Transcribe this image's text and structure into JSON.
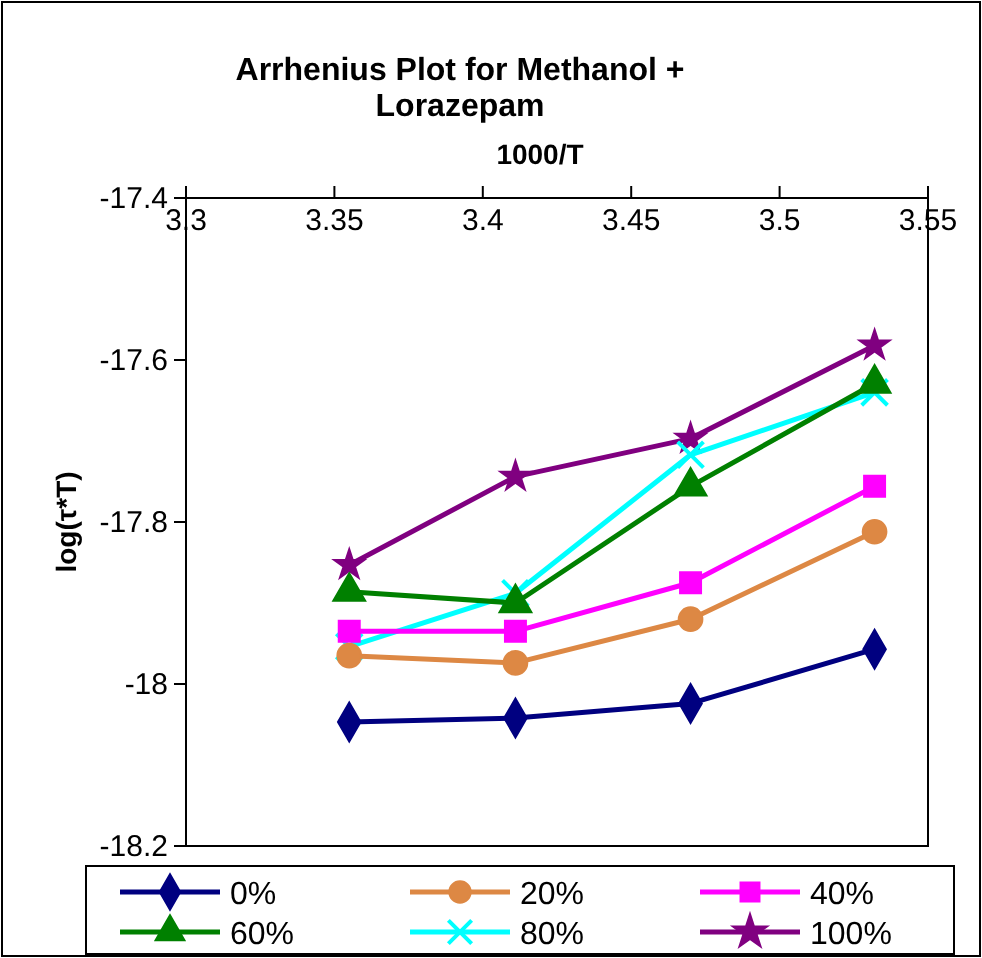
{
  "chart_data": {
    "type": "line",
    "title": "Arrhenius Plot for Methanol + Lorazepam",
    "xlabel": "1000/T",
    "ylabel": "log(τ*T)",
    "x": [
      3.355,
      3.411,
      3.47,
      3.532
    ],
    "xlim": [
      3.3,
      3.55
    ],
    "xticks": [
      3.3,
      3.35,
      3.4,
      3.45,
      3.5,
      3.55
    ],
    "ylim": [
      -18.2,
      -17.4
    ],
    "yticks": [
      -18.2,
      -18,
      -17.8,
      -17.6,
      -17.4
    ],
    "grid": false,
    "legend": "bottom",
    "series": [
      {
        "name": "0%",
        "color": "#000080",
        "marker": "diamond",
        "values": [
          -18.047,
          -18.042,
          -18.024,
          -17.957
        ]
      },
      {
        "name": "20%",
        "color": "#dd8844",
        "marker": "circle",
        "values": [
          -17.965,
          -17.974,
          -17.92,
          -17.812
        ]
      },
      {
        "name": "40%",
        "color": "#ff00ff",
        "marker": "square",
        "values": [
          -17.935,
          -17.935,
          -17.875,
          -17.756
        ]
      },
      {
        "name": "60%",
        "color": "#008000",
        "marker": "triangle",
        "values": [
          -17.886,
          -17.9,
          -17.756,
          -17.629
        ]
      },
      {
        "name": "80%",
        "color": "#00ffff",
        "marker": "cross",
        "values": [
          -17.954,
          -17.888,
          -17.717,
          -17.64
        ]
      },
      {
        "name": "100%",
        "color": "#800080",
        "marker": "star",
        "values": [
          -17.853,
          -17.744,
          -17.697,
          -17.582
        ]
      }
    ]
  }
}
